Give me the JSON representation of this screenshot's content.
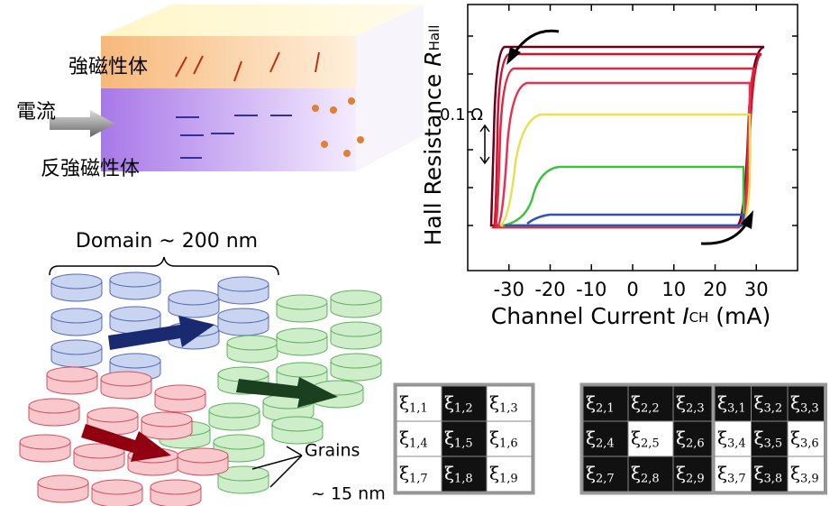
{
  "device_diagram": {
    "ferromagnet_label": "強磁性体",
    "current_label": "電流",
    "antiferromagnet_label": "反強磁性体"
  },
  "domain_diagram": {
    "domain_label": "Domain ~ 200 nm",
    "grains_label": "Grains",
    "grain_size_label": "~ 15 nm"
  },
  "hysteresis_plot": {
    "y_label": {
      "text": "Hall Resistance ",
      "symbol": "R",
      "subscript": "Hall"
    },
    "x_label": {
      "text": "Channel Current ",
      "symbol": "I",
      "subscript": "CH",
      "unit": " (mA)"
    },
    "scale_bar": "0.1 Ω",
    "xlim": [
      -40,
      40
    ],
    "xticks": [
      -30,
      -20,
      -10,
      0,
      10,
      20,
      30
    ]
  },
  "matrices": {
    "symbol": "ξ",
    "items": [
      [
        {
          "index": "1,1",
          "dark": false
        },
        {
          "index": "1,2",
          "dark": true
        },
        {
          "index": "1,3",
          "dark": false
        },
        {
          "index": "1,4",
          "dark": false
        },
        {
          "index": "1,5",
          "dark": true
        },
        {
          "index": "1,6",
          "dark": false
        },
        {
          "index": "1,7",
          "dark": false
        },
        {
          "index": "1,8",
          "dark": true
        },
        {
          "index": "1,9",
          "dark": false
        }
      ],
      [
        {
          "index": "2,1",
          "dark": true
        },
        {
          "index": "2,2",
          "dark": true
        },
        {
          "index": "2,3",
          "dark": true
        },
        {
          "index": "2,4",
          "dark": true
        },
        {
          "index": "2,5",
          "dark": false
        },
        {
          "index": "2,6",
          "dark": true
        },
        {
          "index": "2,7",
          "dark": true
        },
        {
          "index": "2,8",
          "dark": true
        },
        {
          "index": "2,9",
          "dark": true
        }
      ],
      [
        {
          "index": "3,1",
          "dark": true
        },
        {
          "index": "3,2",
          "dark": true
        },
        {
          "index": "3,3",
          "dark": true
        },
        {
          "index": "3,4",
          "dark": false
        },
        {
          "index": "3,5",
          "dark": true
        },
        {
          "index": "3,6",
          "dark": false
        },
        {
          "index": "3,7",
          "dark": false
        },
        {
          "index": "3,8",
          "dark": true
        },
        {
          "index": "3,9",
          "dark": false
        }
      ]
    ]
  }
}
